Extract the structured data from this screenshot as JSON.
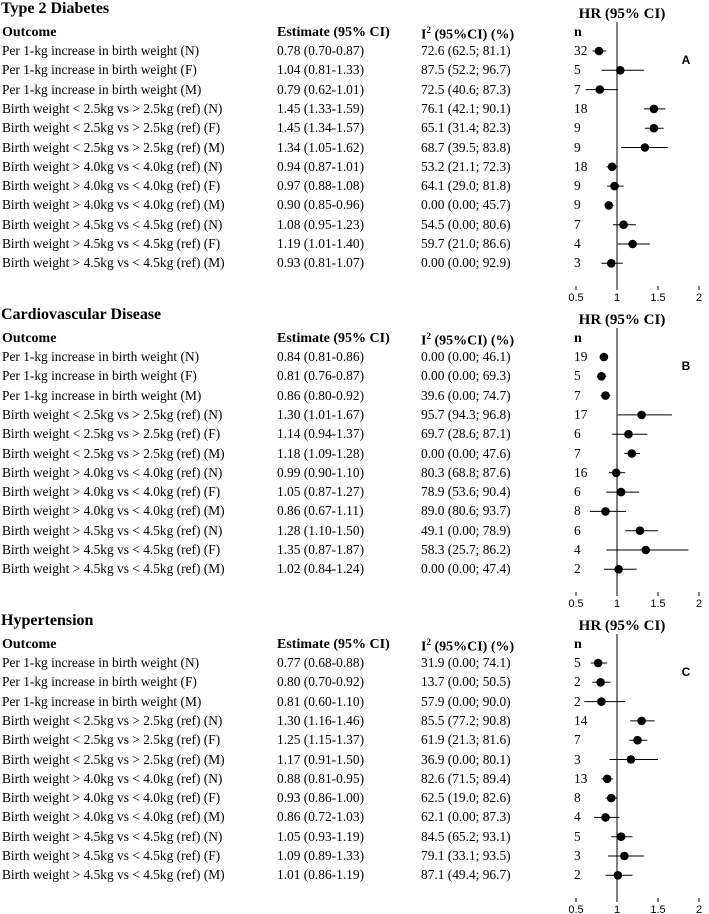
{
  "columns": {
    "outcome": "Outcome",
    "estimate": "Estimate (95% CI)",
    "i2_main": "I",
    "i2_sup": "2",
    "i2_rest": " (95%CI) (%)",
    "n": "n",
    "hr": "HR (95% CI)"
  },
  "panels": [
    {
      "title": "Type 2 Diabetes",
      "letter": "A",
      "rows": [
        {
          "outcome": "Per 1-kg increase in birth weight (N)",
          "estimate": "0.78 (0.70-0.87)",
          "i2": "72.6 (62.5; 81.1)",
          "n": "32"
        },
        {
          "outcome": "Per 1-kg increase in birth weight (F)",
          "estimate": "1.04 (0.81-1.33)",
          "i2": "87.5 (52.2; 96.7)",
          "n": "5"
        },
        {
          "outcome": "Per 1-kg increase in birth weight (M)",
          "estimate": "0.79 (0.62-1.01)",
          "i2": "72.5 (40.6; 87.3)",
          "n": "7"
        },
        {
          "outcome": "Birth weight < 2.5kg vs > 2.5kg (ref) (N)",
          "estimate": "1.45 (1.33-1.59)",
          "i2": "76.1 (42.1; 90.1)",
          "n": "18"
        },
        {
          "outcome": "Birth weight < 2.5kg vs > 2.5kg (ref) (F)",
          "estimate": "1.45 (1.34-1.57)",
          "i2": "65.1 (31.4; 82.3)",
          "n": "9"
        },
        {
          "outcome": "Birth weight < 2.5kg vs > 2.5kg (ref) (M)",
          "estimate": "1.34 (1.05-1.62)",
          "i2": "68.7 (39.5; 83.8)",
          "n": "9"
        },
        {
          "outcome": "Birth weight > 4.0kg vs < 4.0kg (ref) (N)",
          "estimate": "0.94 (0.87-1.01)",
          "i2": "53.2 (21.1; 72.3)",
          "n": "18"
        },
        {
          "outcome": "Birth weight > 4.0kg vs < 4.0kg (ref) (F)",
          "estimate": "0.97 (0.88-1.08)",
          "i2": "64.1 (29.0; 81.8)",
          "n": "9"
        },
        {
          "outcome": "Birth weight > 4.0kg vs < 4.0kg (ref) (M)",
          "estimate": "0.90 (0.85-0.96)",
          "i2": "0.00 (0.00; 45.7)",
          "n": "9"
        },
        {
          "outcome": "Birth weight > 4.5kg vs < 4.5kg (ref) (N)",
          "estimate": "1.08 (0.95-1.23)",
          "i2": "54.5 (0.00; 80.6)",
          "n": "7"
        },
        {
          "outcome": "Birth weight > 4.5kg vs < 4.5kg (ref) (F)",
          "estimate": "1.19 (1.01-1.40)",
          "i2": "59.7 (21.0; 86.6)",
          "n": "4"
        },
        {
          "outcome": "Birth weight > 4.5kg vs < 4.5kg (ref) (M)",
          "estimate": "0.93 (0.81-1.07)",
          "i2": "0.00 (0.00; 92.9)",
          "n": "3"
        }
      ]
    },
    {
      "title": "Cardiovascular Disease",
      "letter": "B",
      "rows": [
        {
          "outcome": "Per 1-kg increase in birth weight (N)",
          "estimate": "0.84 (0.81-0.86)",
          "i2": "0.00 (0.00; 46.1)",
          "n": "19"
        },
        {
          "outcome": "Per 1-kg increase in birth weight (F)",
          "estimate": "0.81 (0.76-0.87)",
          "i2": "0.00 (0.00; 69.3)",
          "n": "5"
        },
        {
          "outcome": "Per 1-kg increase in birth weight (M)",
          "estimate": "0.86 (0.80-0.92)",
          "i2": "39.6 (0.00; 74.7)",
          "n": "7"
        },
        {
          "outcome": "Birth weight < 2.5kg vs > 2.5kg (ref) (N)",
          "estimate": "1.30 (1.01-1.67)",
          "i2": "95.7 (94.3; 96.8)",
          "n": "17"
        },
        {
          "outcome": "Birth weight < 2.5kg vs > 2.5kg (ref) (F)",
          "estimate": "1.14 (0.94-1.37)",
          "i2": "69.7 (28.6; 87.1)",
          "n": "6"
        },
        {
          "outcome": "Birth weight < 2.5kg vs > 2.5kg (ref) (M)",
          "estimate": "1.18 (1.09-1.28)",
          "i2": "0.00 (0.00; 47.6)",
          "n": "7"
        },
        {
          "outcome": "Birth weight > 4.0kg vs < 4.0kg (ref) (N)",
          "estimate": "0.99 (0.90-1.10)",
          "i2": "80.3 (68.8; 87.6)",
          "n": "16"
        },
        {
          "outcome": "Birth weight > 4.0kg vs < 4.0kg (ref) (F)",
          "estimate": "1.05 (0.87-1.27)",
          "i2": "78.9 (53.6; 90.4)",
          "n": "6"
        },
        {
          "outcome": "Birth weight > 4.0kg vs < 4.0kg (ref) (M)",
          "estimate": "0.86 (0.67-1.11)",
          "i2": "89.0 (80.6; 93.7)",
          "n": "8"
        },
        {
          "outcome": "Birth weight > 4.5kg vs < 4.5kg (ref) (N)",
          "estimate": "1.28 (1.10-1.50)",
          "i2": "49.1 (0.00; 78.9)",
          "n": "6"
        },
        {
          "outcome": "Birth weight > 4.5kg vs < 4.5kg (ref) (F)",
          "estimate": "1.35 (0.87-1.87)",
          "i2": "58.3 (25.7; 86.2)",
          "n": "4"
        },
        {
          "outcome": "Birth weight > 4.5kg vs < 4.5kg (ref) (M)",
          "estimate": "1.02 (0.84-1.24)",
          "i2": "0.00 (0.00; 47.4)",
          "n": "2"
        }
      ]
    },
    {
      "title": "Hypertension",
      "letter": "C",
      "rows": [
        {
          "outcome": "Per 1-kg increase in birth weight (N)",
          "estimate": "0.77 (0.68-0.88)",
          "i2": "31.9 (0.00; 74.1)",
          "n": "5"
        },
        {
          "outcome": "Per 1-kg increase in birth weight (F)",
          "estimate": "0.80 (0.70-0.92)",
          "i2": "13.7 (0.00; 50.5)",
          "n": "2"
        },
        {
          "outcome": "Per 1-kg increase in birth weight (M)",
          "estimate": "0.81 (0.60-1.10)",
          "i2": "57.9 (0.00; 90.0)",
          "n": "2"
        },
        {
          "outcome": "Birth weight < 2.5kg vs > 2.5kg (ref) (N)",
          "estimate": "1.30 (1.16-1.46)",
          "i2": "85.5 (77.2; 90.8)",
          "n": "14"
        },
        {
          "outcome": "Birth weight < 2.5kg vs > 2.5kg (ref) (F)",
          "estimate": "1.25 (1.15-1.37)",
          "i2": "61.9 (21.3; 81.6)",
          "n": "7"
        },
        {
          "outcome": "Birth weight < 2.5kg vs > 2.5kg (ref) (M)",
          "estimate": "1.17 (0.91-1.50)",
          "i2": "36.9 (0.00; 80.1)",
          "n": "3"
        },
        {
          "outcome": "Birth weight > 4.0kg vs < 4.0kg (ref) (N)",
          "estimate": "0.88 (0.81-0.95)",
          "i2": "82.6 (71.5; 89.4)",
          "n": "13"
        },
        {
          "outcome": "Birth weight > 4.0kg vs < 4.0kg (ref) (F)",
          "estimate": "0.93 (0.86-1.00)",
          "i2": "62.5 (19.0; 82.6)",
          "n": "8"
        },
        {
          "outcome": "Birth weight > 4.0kg vs < 4.0kg (ref) (M)",
          "estimate": "0.86 (0.72-1.03)",
          "i2": "62.1 (0.00; 87.3)",
          "n": "4"
        },
        {
          "outcome": "Birth weight > 4.5kg vs < 4.5kg (ref) (N)",
          "estimate": "1.05 (0.93-1.19)",
          "i2": "84.5 (65.2; 93.1)",
          "n": "5"
        },
        {
          "outcome": "Birth weight > 4.5kg vs < 4.5kg (ref) (F)",
          "estimate": "1.09 (0.89-1.33)",
          "i2": "79.1 (33.1; 93.5)",
          "n": "3"
        },
        {
          "outcome": "Birth weight > 4.5kg vs < 4.5kg (ref) (M)",
          "estimate": "1.01 (0.86-1.19)",
          "i2": "87.1 (49.4; 96.7)",
          "n": "2"
        }
      ]
    }
  ],
  "chart_data": [
    {
      "type": "scatter",
      "title": "HR (95% CI)",
      "panel_label": "A",
      "xlim": [
        0.5,
        2
      ],
      "xticks": [
        "0.5",
        "1",
        "1.5",
        "2"
      ],
      "reference_line": 1,
      "points": [
        {
          "hr": 0.78,
          "lo": 0.7,
          "hi": 0.87
        },
        {
          "hr": 1.04,
          "lo": 0.81,
          "hi": 1.33
        },
        {
          "hr": 0.79,
          "lo": 0.62,
          "hi": 1.01
        },
        {
          "hr": 1.45,
          "lo": 1.33,
          "hi": 1.59
        },
        {
          "hr": 1.45,
          "lo": 1.34,
          "hi": 1.57
        },
        {
          "hr": 1.34,
          "lo": 1.05,
          "hi": 1.62
        },
        {
          "hr": 0.94,
          "lo": 0.87,
          "hi": 1.01
        },
        {
          "hr": 0.97,
          "lo": 0.88,
          "hi": 1.08
        },
        {
          "hr": 0.9,
          "lo": 0.85,
          "hi": 0.96
        },
        {
          "hr": 1.08,
          "lo": 0.95,
          "hi": 1.23
        },
        {
          "hr": 1.19,
          "lo": 1.01,
          "hi": 1.4
        },
        {
          "hr": 0.93,
          "lo": 0.81,
          "hi": 1.07
        }
      ]
    },
    {
      "type": "scatter",
      "title": "HR (95% CI)",
      "panel_label": "B",
      "xlim": [
        0.5,
        2
      ],
      "xticks": [
        "0.5",
        "1",
        "1.5",
        "2"
      ],
      "reference_line": 1,
      "points": [
        {
          "hr": 0.84,
          "lo": 0.81,
          "hi": 0.86
        },
        {
          "hr": 0.81,
          "lo": 0.76,
          "hi": 0.87
        },
        {
          "hr": 0.86,
          "lo": 0.8,
          "hi": 0.92
        },
        {
          "hr": 1.3,
          "lo": 1.01,
          "hi": 1.67
        },
        {
          "hr": 1.14,
          "lo": 0.94,
          "hi": 1.37
        },
        {
          "hr": 1.18,
          "lo": 1.09,
          "hi": 1.28
        },
        {
          "hr": 0.99,
          "lo": 0.9,
          "hi": 1.1
        },
        {
          "hr": 1.05,
          "lo": 0.87,
          "hi": 1.27
        },
        {
          "hr": 0.86,
          "lo": 0.67,
          "hi": 1.11
        },
        {
          "hr": 1.28,
          "lo": 1.1,
          "hi": 1.5
        },
        {
          "hr": 1.35,
          "lo": 0.87,
          "hi": 1.87
        },
        {
          "hr": 1.02,
          "lo": 0.84,
          "hi": 1.24
        }
      ]
    },
    {
      "type": "scatter",
      "title": "HR (95% CI)",
      "panel_label": "C",
      "xlim": [
        0.5,
        2
      ],
      "xticks": [
        "0.5",
        "1",
        "1.5",
        "2"
      ],
      "reference_line": 1,
      "points": [
        {
          "hr": 0.77,
          "lo": 0.68,
          "hi": 0.88
        },
        {
          "hr": 0.8,
          "lo": 0.7,
          "hi": 0.92
        },
        {
          "hr": 0.81,
          "lo": 0.6,
          "hi": 1.1
        },
        {
          "hr": 1.3,
          "lo": 1.16,
          "hi": 1.46
        },
        {
          "hr": 1.25,
          "lo": 1.15,
          "hi": 1.37
        },
        {
          "hr": 1.17,
          "lo": 0.91,
          "hi": 1.5
        },
        {
          "hr": 0.88,
          "lo": 0.81,
          "hi": 0.95
        },
        {
          "hr": 0.93,
          "lo": 0.86,
          "hi": 1.0
        },
        {
          "hr": 0.86,
          "lo": 0.72,
          "hi": 1.03
        },
        {
          "hr": 1.05,
          "lo": 0.93,
          "hi": 1.19
        },
        {
          "hr": 1.09,
          "lo": 0.89,
          "hi": 1.33
        },
        {
          "hr": 1.01,
          "lo": 0.86,
          "hi": 1.19
        }
      ]
    }
  ]
}
